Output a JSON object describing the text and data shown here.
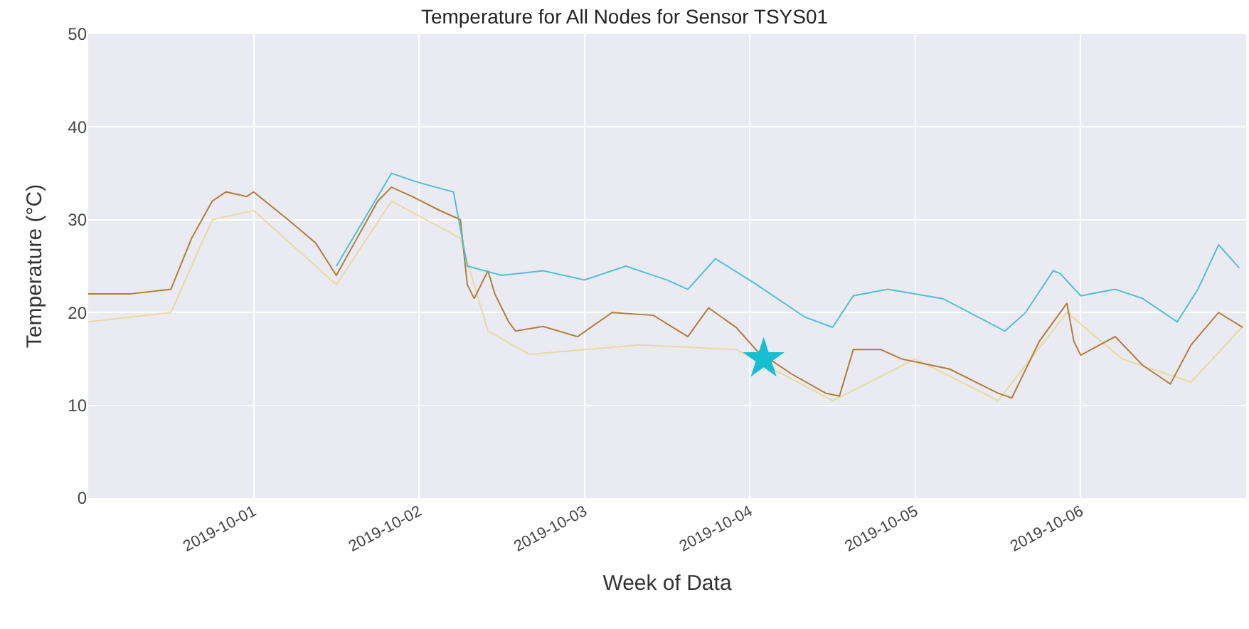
{
  "chart_data": {
    "type": "line",
    "title": "Temperature for All Nodes for Sensor TSYS01",
    "xlabel": "Week of Data",
    "ylabel": "Temperature (°C)",
    "xlim": [
      "2019-09-30T00:00",
      "2019-10-07T00:00"
    ],
    "xticks": [
      "2019-10-01",
      "2019-10-02",
      "2019-10-03",
      "2019-10-04",
      "2019-10-05",
      "2019-10-06"
    ],
    "ylim": [
      0,
      50
    ],
    "yticks": [
      0,
      10,
      20,
      30,
      40,
      50
    ],
    "grid": true,
    "legend": false,
    "marker": "none",
    "line_style": "solid",
    "series": [
      {
        "color": "#e6dba0",
        "x": [
          "2019-09-30T00:00",
          "2019-09-30T06:00",
          "2019-09-30T12:00",
          "2019-09-30T18:00",
          "2019-10-01T00:00",
          "2019-10-01T12:00",
          "2019-10-01T20:00",
          "2019-10-02T06:00",
          "2019-10-02T10:00",
          "2019-10-02T16:00",
          "2019-10-03T08:00",
          "2019-10-03T22:00",
          "2019-10-04T12:00",
          "2019-10-05T00:00",
          "2019-10-05T12:00",
          "2019-10-05T22:00",
          "2019-10-06T06:00",
          "2019-10-06T16:00",
          "2019-10-06T23:30"
        ],
        "values": [
          19,
          19.5,
          20,
          30,
          31,
          23,
          32,
          28,
          18,
          15.5,
          16.5,
          16,
          10.5,
          15,
          10.5,
          20,
          15,
          12.5,
          18.5
        ]
      },
      {
        "color": "#b07d3a",
        "x": [
          "2019-09-30T00:00",
          "2019-09-30T06:00",
          "2019-09-30T12:00",
          "2019-09-30T15:00",
          "2019-09-30T18:00",
          "2019-09-30T20:00",
          "2019-09-30T23:00",
          "2019-10-01T00:00",
          "2019-10-01T05:00",
          "2019-10-01T09:00",
          "2019-10-01T12:00",
          "2019-10-01T15:00",
          "2019-10-01T18:00",
          "2019-10-01T20:00",
          "2019-10-01T23:00",
          "2019-10-02T03:00",
          "2019-10-02T06:00",
          "2019-10-02T07:00",
          "2019-10-02T08:00",
          "2019-10-02T10:00",
          "2019-10-02T11:00",
          "2019-10-02T13:00",
          "2019-10-02T14:00",
          "2019-10-02T18:00",
          "2019-10-02T23:00",
          "2019-10-03T04:00",
          "2019-10-03T10:00",
          "2019-10-03T15:00",
          "2019-10-03T18:00",
          "2019-10-03T22:00",
          "2019-10-04T01:00",
          "2019-10-04T06:00",
          "2019-10-04T11:00",
          "2019-10-04T13:00",
          "2019-10-04T15:00",
          "2019-10-04T19:00",
          "2019-10-04T22:00",
          "2019-10-05T05:00",
          "2019-10-05T12:00",
          "2019-10-05T14:00",
          "2019-10-05T18:00",
          "2019-10-05T22:00",
          "2019-10-05T23:00",
          "2019-10-06T00:00",
          "2019-10-06T05:00",
          "2019-10-06T09:00",
          "2019-10-06T13:00",
          "2019-10-06T16:00",
          "2019-10-06T20:00",
          "2019-10-06T23:30"
        ],
        "values": [
          22,
          22,
          22.5,
          28,
          32,
          33,
          32.5,
          33,
          30,
          27.5,
          24,
          28,
          32,
          33.5,
          32.5,
          31,
          30,
          23,
          21.5,
          24.5,
          22,
          19,
          18,
          18.5,
          17.4,
          20,
          19.7,
          17.4,
          20.5,
          18.4,
          15.9,
          13.4,
          11.3,
          11,
          16,
          16,
          15,
          13.9,
          11.3,
          10.8,
          16.9,
          21,
          16.9,
          15.4,
          17.4,
          14.3,
          12.3,
          16.5,
          20,
          18.4
        ]
      },
      {
        "color": "#4fc1d0",
        "x": [
          "2019-10-01T12:00",
          "2019-10-01T20:00",
          "2019-10-02T00:00",
          "2019-10-02T05:00",
          "2019-10-02T07:00",
          "2019-10-02T12:00",
          "2019-10-02T18:00",
          "2019-10-03T00:00",
          "2019-10-03T06:00",
          "2019-10-03T12:00",
          "2019-10-03T15:00",
          "2019-10-03T19:00",
          "2019-10-04T01:00",
          "2019-10-04T08:00",
          "2019-10-04T12:00",
          "2019-10-04T15:00",
          "2019-10-04T20:00",
          "2019-10-05T04:00",
          "2019-10-05T13:00",
          "2019-10-05T16:00",
          "2019-10-05T20:00",
          "2019-10-05T21:00",
          "2019-10-06T00:00",
          "2019-10-06T05:00",
          "2019-10-06T09:00",
          "2019-10-06T14:00",
          "2019-10-06T17:00",
          "2019-10-06T20:00",
          "2019-10-06T23:00"
        ],
        "values": [
          25,
          35,
          34,
          33,
          25,
          24,
          24.5,
          23.5,
          25,
          23.5,
          22.5,
          25.8,
          23,
          19.5,
          18.4,
          21.8,
          22.5,
          21.5,
          18,
          20,
          24.5,
          24.2,
          21.8,
          22.5,
          21.5,
          19,
          22.5,
          27.3,
          24.8
        ]
      },
      {
        "type": "scatter",
        "marker": "star",
        "color": "#17becf",
        "x": [
          "2019-10-04T02:00"
        ],
        "values": [
          15
        ]
      }
    ]
  }
}
